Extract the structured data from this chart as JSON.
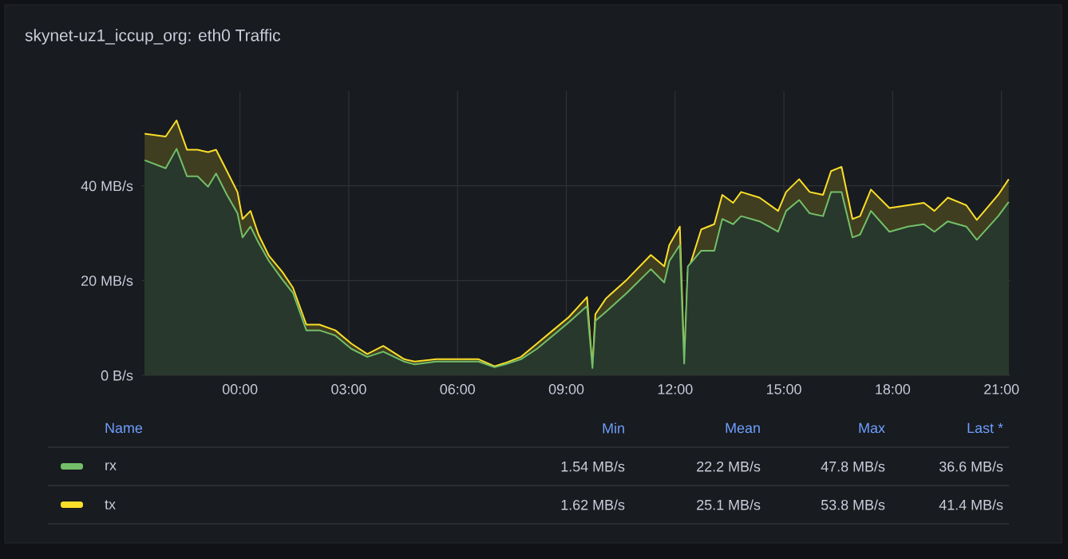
{
  "chart_data": {
    "type": "area",
    "title": "skynet-uz1_iccup_org: eth0 Traffic",
    "xlim": [
      -2.7,
      21.25
    ],
    "ylim": [
      0,
      60
    ],
    "xticks": [
      {
        "value": 0,
        "label": "00:00"
      },
      {
        "value": 3,
        "label": "03:00"
      },
      {
        "value": 6,
        "label": "06:00"
      },
      {
        "value": 9,
        "label": "09:00"
      },
      {
        "value": 12,
        "label": "12:00"
      },
      {
        "value": 15,
        "label": "15:00"
      },
      {
        "value": 18,
        "label": "18:00"
      },
      {
        "value": 21,
        "label": "21:00"
      }
    ],
    "yticks": [
      {
        "value": 0,
        "label": "0 B/s"
      },
      {
        "value": 20,
        "label": "20 MB/s"
      },
      {
        "value": 40,
        "label": "40 MB/s"
      }
    ],
    "grid": true,
    "legend": "bottom",
    "annotations": [
      "Name",
      "Min",
      "Mean",
      "Max",
      "Last *",
      "1.54 MB/s",
      "22.2 MB/s",
      "47.8 MB/s",
      "36.6 MB/s",
      "1.62 MB/s",
      "25.1 MB/s",
      "53.8 MB/s",
      "41.4 MB/s"
    ],
    "x": [
      -2.63,
      -2.05,
      -1.75,
      -1.46,
      -1.17,
      -0.88,
      -0.66,
      -0.36,
      -0.07,
      0.07,
      0.29,
      0.51,
      0.8,
      1.17,
      1.46,
      1.83,
      2.19,
      2.63,
      3.07,
      3.51,
      3.95,
      4.53,
      4.82,
      5.41,
      6.0,
      6.58,
      7.02,
      7.31,
      7.75,
      8.19,
      8.63,
      9.07,
      9.57,
      9.72,
      9.8,
      10.09,
      10.67,
      11.33,
      11.7,
      11.84,
      12.13,
      12.25,
      12.35,
      12.72,
      13.08,
      13.3,
      13.6,
      13.82,
      14.33,
      14.84,
      15.06,
      15.42,
      15.71,
      16.08,
      16.3,
      16.59,
      16.89,
      17.1,
      17.4,
      17.91,
      18.42,
      18.86,
      19.15,
      19.52,
      20.03,
      20.32,
      20.91,
      21.2
    ],
    "series": [
      {
        "name": "rx",
        "color": "#73bf69",
        "values": [
          45.4,
          43.7,
          47.8,
          42.0,
          42.0,
          39.8,
          42.6,
          38.1,
          34.2,
          29.1,
          31.4,
          28.0,
          24.1,
          20.2,
          17.4,
          9.5,
          9.5,
          8.4,
          5.6,
          3.9,
          5.0,
          2.9,
          2.3,
          2.9,
          2.9,
          2.9,
          1.7,
          2.3,
          3.4,
          5.6,
          8.4,
          11.2,
          14.6,
          1.54,
          11.5,
          13.4,
          17.4,
          22.4,
          19.6,
          24.1,
          27.5,
          2.5,
          23.0,
          26.3,
          26.3,
          33.0,
          31.9,
          33.6,
          32.5,
          30.3,
          34.7,
          37.0,
          34.2,
          33.6,
          38.7,
          38.7,
          29.1,
          29.7,
          34.7,
          30.3,
          31.4,
          31.9,
          30.3,
          32.5,
          31.4,
          28.6,
          33.6,
          36.6
        ]
      },
      {
        "name": "tx",
        "color": "#fade2a",
        "values": [
          51.0,
          50.4,
          53.8,
          47.6,
          47.6,
          47.1,
          47.6,
          43.1,
          38.7,
          33.0,
          34.7,
          29.7,
          25.2,
          21.8,
          18.5,
          10.7,
          10.7,
          9.5,
          6.7,
          4.5,
          6.2,
          3.4,
          2.9,
          3.4,
          3.4,
          3.4,
          1.9,
          2.6,
          3.9,
          6.7,
          9.5,
          12.3,
          16.5,
          1.62,
          12.9,
          16.2,
          20.2,
          25.4,
          23.0,
          27.5,
          31.4,
          2.8,
          21.8,
          30.8,
          31.9,
          38.1,
          36.4,
          38.7,
          37.5,
          34.7,
          38.7,
          41.4,
          38.7,
          38.1,
          43.1,
          44.0,
          33.0,
          33.6,
          39.2,
          35.3,
          35.9,
          36.4,
          34.7,
          37.5,
          35.9,
          32.8,
          38.1,
          41.4
        ]
      }
    ]
  }
}
